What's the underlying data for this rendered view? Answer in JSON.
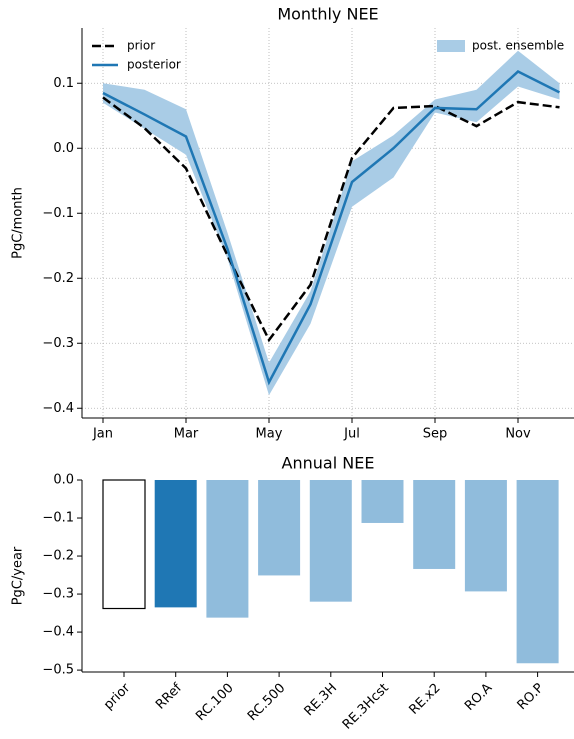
{
  "chart_data": [
    {
      "type": "line",
      "title": "Monthly NEE",
      "y_label": "PgC/month",
      "categories": [
        "Jan",
        null,
        "Mar",
        null,
        "May",
        null,
        "Jul",
        null,
        "Sep",
        null,
        "Nov",
        null
      ],
      "series": [
        {
          "name": "post. ensemble",
          "type": "band",
          "color": "#a9cce6",
          "legend_loc": "upper right",
          "upper": [
            0.1,
            0.09,
            0.06,
            -0.13,
            -0.33,
            -0.22,
            -0.02,
            0.02,
            0.075,
            0.09,
            0.15,
            0.1
          ],
          "lower": [
            0.07,
            0.03,
            -0.01,
            -0.17,
            -0.38,
            -0.27,
            -0.09,
            -0.045,
            0.055,
            0.04,
            0.095,
            0.075
          ]
        },
        {
          "name": "prior",
          "color": "#000000",
          "linestyle": "dashed",
          "legend_loc": "upper left",
          "values": [
            0.078,
            0.031,
            -0.031,
            -0.165,
            -0.295,
            -0.21,
            -0.015,
            0.062,
            0.065,
            0.034,
            0.071,
            0.063
          ]
        },
        {
          "name": "posterior",
          "color": "#1f77b4",
          "linestyle": "solid",
          "legend_loc": "upper left",
          "values": [
            0.085,
            0.052,
            0.018,
            -0.155,
            -0.36,
            -0.24,
            -0.052,
            0.0,
            0.062,
            0.06,
            0.118,
            0.086
          ]
        }
      ],
      "ylim": [
        -0.415,
        0.185
      ],
      "yticks": [
        {
          "value": -0.4,
          "label": "−0.4"
        },
        {
          "value": -0.3,
          "label": "−0.3"
        },
        {
          "value": -0.2,
          "label": "−0.2"
        },
        {
          "value": -0.1,
          "label": "−0.1"
        },
        {
          "value": 0,
          "label": "0.0"
        },
        0.1
      ],
      "grid": true
    },
    {
      "type": "bar",
      "title": "Annual NEE",
      "y_label": "PgC/year",
      "categories": [
        "prior",
        "RRef",
        "RC.100",
        "RC.500",
        "RE.3H",
        "RE.3Hcst",
        "RE.x2",
        "RO.A",
        "RO.P"
      ],
      "values": [
        -0.338,
        -0.335,
        -0.362,
        -0.251,
        -0.32,
        -0.113,
        -0.234,
        -0.293,
        -0.482
      ],
      "colors": [
        "#ffffff",
        "#1f77b4",
        "#90bcdc",
        "#90bcdc",
        "#90bcdc",
        "#90bcdc",
        "#90bcdc",
        "#90bcdc",
        "#90bcdc"
      ],
      "edge_colors": [
        "#000000",
        null,
        null,
        null,
        null,
        null,
        null,
        null,
        null
      ],
      "ylim": [
        -0.505,
        0
      ],
      "yticks": [
        {
          "value": -0.5,
          "label": "−0.5"
        },
        {
          "value": -0.4,
          "label": "−0.4"
        },
        {
          "value": -0.3,
          "label": "−0.3"
        },
        {
          "value": -0.2,
          "label": "−0.2"
        },
        {
          "value": -0.1,
          "label": "−0.1"
        },
        {
          "value": 0,
          "label": "0.0"
        }
      ],
      "grid": false
    }
  ]
}
